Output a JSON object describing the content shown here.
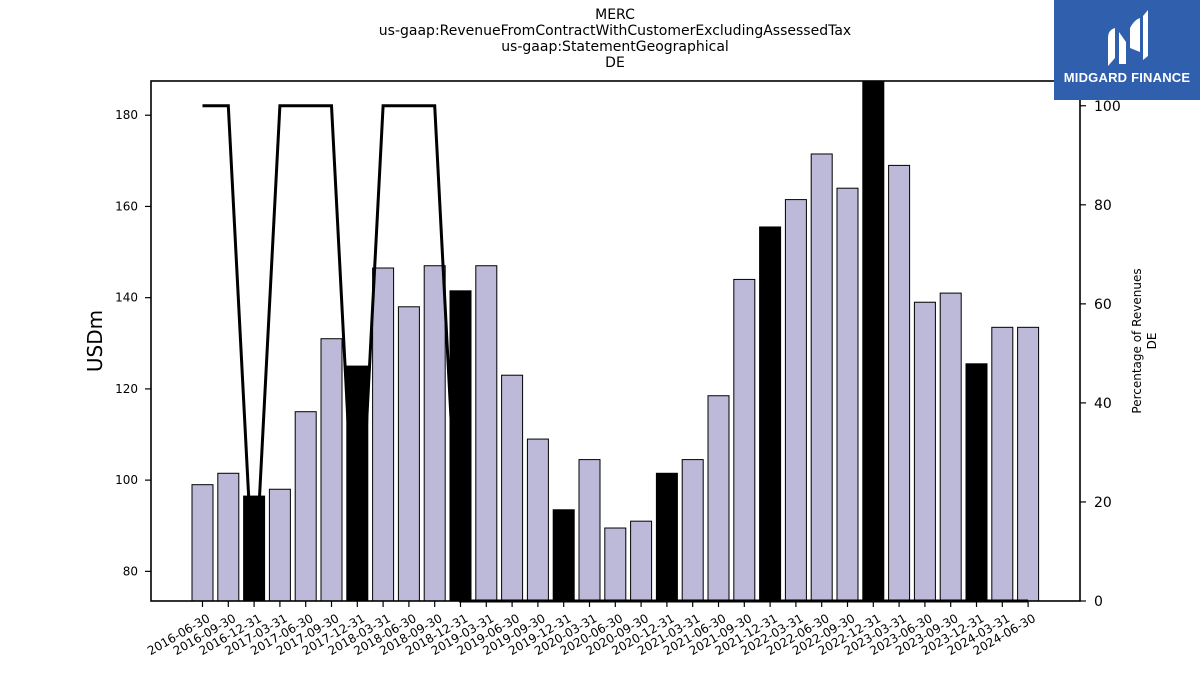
{
  "title_lines": [
    "MERC",
    "us-gaap:RevenueFromContractWithCustomerExcludingAssessedTax",
    "us-gaap:StatementGeographical",
    "DE"
  ],
  "logo": {
    "text": "MIDGARD FINANCE",
    "background": "#2f5fad"
  },
  "chart_data": {
    "type": "bar",
    "ylabel": "USDm",
    "ylabel_right": [
      "Percentage of Revenues",
      "DE"
    ],
    "ylim": [
      73.5,
      187.5
    ],
    "y2lim": [
      0,
      105
    ],
    "yticks": [
      80,
      100,
      120,
      140,
      160,
      180
    ],
    "y2ticks": [
      0,
      20,
      40,
      60,
      80,
      100
    ],
    "categories": [
      "2016-06-30",
      "2016-09-30",
      "2016-12-31",
      "2017-03-31",
      "2017-06-30",
      "2017-09-30",
      "2017-12-31",
      "2018-03-31",
      "2018-06-30",
      "2018-09-30",
      "2018-12-31",
      "2019-03-31",
      "2019-06-30",
      "2019-09-30",
      "2019-12-31",
      "2020-03-31",
      "2020-06-30",
      "2020-09-30",
      "2020-12-31",
      "2021-03-31",
      "2021-06-30",
      "2021-09-30",
      "2021-12-31",
      "2022-03-31",
      "2022-06-30",
      "2022-09-30",
      "2022-12-31",
      "2023-03-31",
      "2023-06-30",
      "2023-09-30",
      "2023-12-31",
      "2024-03-31",
      "2024-06-30"
    ],
    "series": [
      {
        "type": "bar",
        "values": [
          99,
          101.5,
          96.5,
          98,
          115,
          131,
          125,
          146.5,
          138,
          147,
          141.5,
          147,
          123,
          109,
          93.5,
          104.5,
          89.5,
          91,
          101.5,
          104.5,
          118.5,
          144,
          155.5,
          161.5,
          171.5,
          164,
          187.5,
          169,
          139,
          141,
          125.5,
          133.5,
          133.5
        ],
        "highlight": [
          false,
          false,
          true,
          false,
          false,
          false,
          true,
          false,
          false,
          false,
          true,
          false,
          false,
          false,
          true,
          false,
          false,
          false,
          true,
          false,
          false,
          false,
          true,
          false,
          false,
          false,
          true,
          false,
          false,
          false,
          true,
          false,
          false
        ],
        "color": "#bdb9d9",
        "highlight_color": "#000000"
      },
      {
        "type": "line",
        "axis": "right",
        "values": [
          100,
          100,
          0,
          100,
          100,
          100,
          0,
          100,
          100,
          100,
          0,
          0,
          0,
          0,
          0,
          0,
          0,
          0,
          0,
          0,
          0,
          0,
          0,
          0,
          0,
          0,
          0,
          0,
          0,
          0,
          0,
          0,
          0
        ],
        "color": "#000000"
      }
    ]
  }
}
